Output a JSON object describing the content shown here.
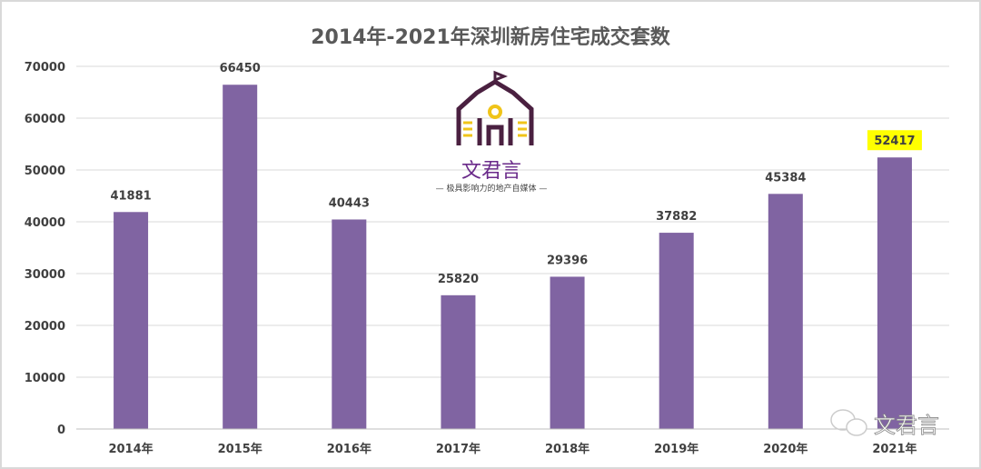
{
  "chart_data": {
    "type": "bar",
    "title": "2014年-2021年深圳新房住宅成交套数",
    "categories": [
      "2014年",
      "2015年",
      "2016年",
      "2017年",
      "2018年",
      "2019年",
      "2020年",
      "2021年"
    ],
    "values": [
      41881,
      66450,
      40443,
      25820,
      29396,
      37882,
      45384,
      52417
    ],
    "highlighted_label_index": 7,
    "ylim": [
      0,
      70000
    ],
    "yticks": [
      0,
      10000,
      20000,
      30000,
      40000,
      50000,
      60000,
      70000
    ],
    "grid": true,
    "xlabel": "",
    "ylabel": "",
    "colors": {
      "bar": "#8064a2",
      "highlight": "#ffff00",
      "grid": "#d9d9d9"
    }
  },
  "watermark": {
    "logo_name": "文君言",
    "logo_slogan": "— 极具影响力的地产自媒体 —",
    "corner_text": "文君言"
  }
}
